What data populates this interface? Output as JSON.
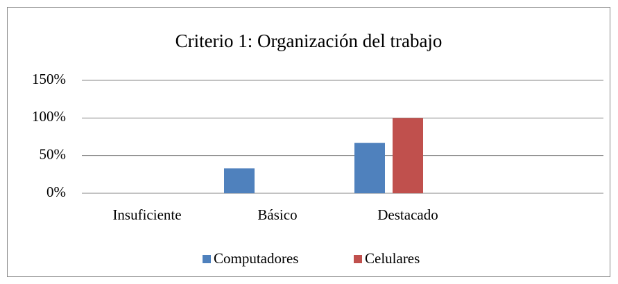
{
  "chart_data": {
    "type": "bar",
    "title": "Criterio 1: Organización del trabajo",
    "categories": [
      "Insuficiente",
      "Básico",
      "Destacado",
      null
    ],
    "series": [
      {
        "name": "Computadores",
        "color": "#4f81bd",
        "values": [
          0,
          33,
          67,
          null
        ]
      },
      {
        "name": "Celulares",
        "color": "#c0504d",
        "values": [
          0,
          0,
          100,
          null
        ]
      }
    ],
    "ylim": [
      0,
      150
    ],
    "yticks": [
      {
        "value": 0,
        "label": "0%"
      },
      {
        "value": 50,
        "label": "50%"
      },
      {
        "value": 100,
        "label": "100%"
      },
      {
        "value": 150,
        "label": "150%"
      }
    ],
    "grid": true,
    "legend": "bottom"
  }
}
